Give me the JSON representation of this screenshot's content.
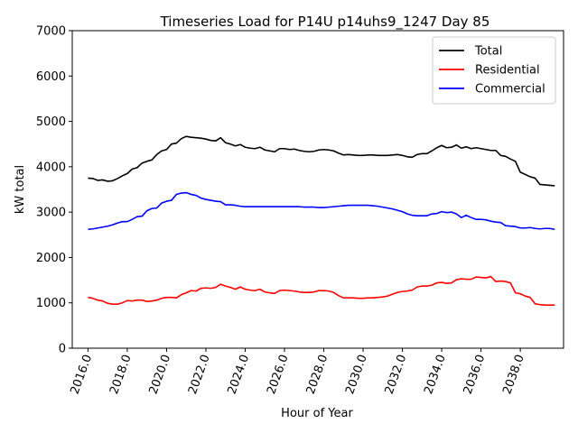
{
  "chart_data": {
    "type": "line",
    "title": "Timeseries Load for P14U p14uhs9_1247  Day 85",
    "xlabel": "Hour of Year",
    "ylabel": "kW total",
    "xlim": [
      2015.2,
      2040.2
    ],
    "ylim": [
      0,
      7000
    ],
    "xticks": [
      2016,
      2018,
      2020,
      2022,
      2024,
      2026,
      2028,
      2030,
      2032,
      2034,
      2036,
      2038
    ],
    "xtick_labels": [
      "2016.0",
      "2018.0",
      "2020.0",
      "2022.0",
      "2024.0",
      "2026.0",
      "2028.0",
      "2030.0",
      "2032.0",
      "2034.0",
      "2036.0",
      "2038.0"
    ],
    "yticks": [
      0,
      1000,
      2000,
      3000,
      4000,
      5000,
      6000,
      7000
    ],
    "ytick_labels": [
      "0",
      "1000",
      "2000",
      "3000",
      "4000",
      "5000",
      "6000",
      "7000"
    ],
    "legend_position": "top-right",
    "x": [
      2016.0,
      2016.25,
      2016.5,
      2016.75,
      2017.0,
      2017.25,
      2017.5,
      2017.75,
      2018.0,
      2018.25,
      2018.5,
      2018.75,
      2019.0,
      2019.25,
      2019.5,
      2019.75,
      2020.0,
      2020.25,
      2020.5,
      2020.75,
      2021.0,
      2021.25,
      2021.5,
      2021.75,
      2022.0,
      2022.25,
      2022.5,
      2022.75,
      2023.0,
      2023.25,
      2023.5,
      2023.75,
      2024.0,
      2024.25,
      2024.5,
      2024.75,
      2025.0,
      2025.25,
      2025.5,
      2025.75,
      2026.0,
      2026.25,
      2026.5,
      2026.75,
      2027.0,
      2027.25,
      2027.5,
      2027.75,
      2028.0,
      2028.25,
      2028.5,
      2028.75,
      2029.0,
      2029.25,
      2029.5,
      2029.75,
      2030.0,
      2030.25,
      2030.5,
      2030.75,
      2031.0,
      2031.25,
      2031.5,
      2031.75,
      2032.0,
      2032.25,
      2032.5,
      2032.75,
      2033.0,
      2033.25,
      2033.5,
      2033.75,
      2034.0,
      2034.25,
      2034.5,
      2034.75,
      2035.0,
      2035.25,
      2035.5,
      2035.75,
      2036.0,
      2036.25,
      2036.5,
      2036.75,
      2037.0,
      2037.25,
      2037.5,
      2037.75,
      2038.0,
      2038.25,
      2038.5,
      2038.75,
      2039.0,
      2039.25,
      2039.5,
      2039.75
    ],
    "series": [
      {
        "name": "Total",
        "color": "#000000",
        "values": [
          3750,
          3740,
          3700,
          3710,
          3680,
          3690,
          3740,
          3800,
          3850,
          3950,
          3980,
          4080,
          4120,
          4150,
          4270,
          4350,
          4380,
          4500,
          4520,
          4620,
          4670,
          4650,
          4640,
          4630,
          4610,
          4580,
          4570,
          4640,
          4530,
          4500,
          4460,
          4490,
          4430,
          4410,
          4400,
          4430,
          4370,
          4350,
          4330,
          4400,
          4400,
          4380,
          4390,
          4360,
          4340,
          4330,
          4340,
          4370,
          4380,
          4370,
          4350,
          4300,
          4260,
          4270,
          4260,
          4250,
          4250,
          4260,
          4260,
          4250,
          4250,
          4250,
          4260,
          4270,
          4250,
          4220,
          4210,
          4270,
          4290,
          4290,
          4350,
          4420,
          4470,
          4420,
          4430,
          4480,
          4410,
          4440,
          4400,
          4420,
          4400,
          4380,
          4360,
          4360,
          4250,
          4230,
          4170,
          4120,
          3880,
          3830,
          3780,
          3750,
          3610,
          3600,
          3590,
          3580
        ]
      },
      {
        "name": "Residential",
        "color": "#ff0000",
        "values": [
          1120,
          1100,
          1060,
          1040,
          990,
          970,
          970,
          1000,
          1050,
          1040,
          1060,
          1060,
          1030,
          1040,
          1060,
          1100,
          1120,
          1120,
          1110,
          1180,
          1220,
          1270,
          1260,
          1320,
          1330,
          1320,
          1340,
          1410,
          1370,
          1340,
          1300,
          1350,
          1300,
          1280,
          1270,
          1300,
          1240,
          1220,
          1210,
          1270,
          1280,
          1270,
          1260,
          1240,
          1230,
          1230,
          1240,
          1270,
          1270,
          1260,
          1230,
          1160,
          1110,
          1110,
          1110,
          1100,
          1100,
          1110,
          1110,
          1120,
          1130,
          1150,
          1190,
          1230,
          1250,
          1260,
          1280,
          1350,
          1370,
          1370,
          1390,
          1440,
          1450,
          1430,
          1440,
          1510,
          1530,
          1520,
          1520,
          1570,
          1560,
          1550,
          1580,
          1470,
          1480,
          1470,
          1440,
          1220,
          1200,
          1150,
          1120,
          980,
          960,
          950,
          950,
          950
        ]
      },
      {
        "name": "Commercial",
        "color": "#0000ff",
        "values": [
          2620,
          2630,
          2650,
          2670,
          2690,
          2720,
          2760,
          2790,
          2790,
          2840,
          2900,
          2910,
          3030,
          3080,
          3090,
          3200,
          3240,
          3260,
          3390,
          3420,
          3430,
          3390,
          3370,
          3310,
          3280,
          3260,
          3240,
          3230,
          3160,
          3160,
          3150,
          3130,
          3120,
          3120,
          3120,
          3120,
          3120,
          3120,
          3120,
          3120,
          3120,
          3120,
          3120,
          3120,
          3110,
          3110,
          3110,
          3100,
          3100,
          3110,
          3120,
          3130,
          3140,
          3150,
          3150,
          3150,
          3150,
          3150,
          3140,
          3130,
          3110,
          3090,
          3070,
          3040,
          3010,
          2960,
          2930,
          2920,
          2920,
          2920,
          2960,
          2970,
          3010,
          2990,
          3000,
          2960,
          2880,
          2930,
          2880,
          2840,
          2840,
          2830,
          2800,
          2780,
          2770,
          2700,
          2690,
          2680,
          2650,
          2650,
          2660,
          2640,
          2630,
          2640,
          2640,
          2620
        ]
      }
    ]
  }
}
